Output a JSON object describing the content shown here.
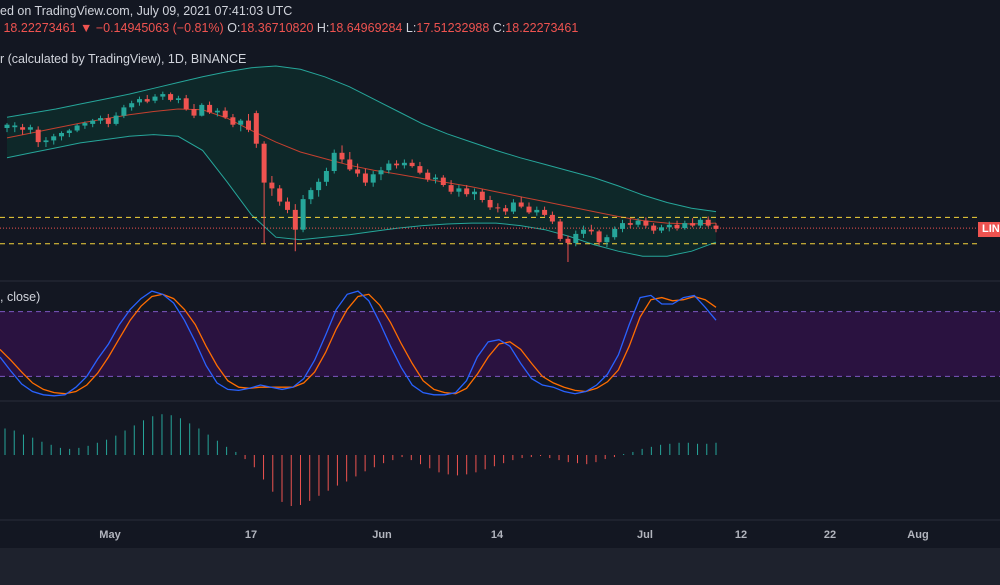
{
  "header": {
    "published": "ed on TradingView.com, July 09, 2021 07:41:03 UTC",
    "last": "18.22273461",
    "change_arrow": "▼",
    "change": "−0.14945063 (−0.81%)",
    "o_label": "O:",
    "o": "18.36710820",
    "h_label": "H:",
    "h": "18.64969284",
    "l_label": "L:",
    "l": "17.51232988",
    "c_label": "C:",
    "c": "18.22273461",
    "symbol_desc": "r (calculated by TradingView), 1D, BINANCE",
    "indicator_desc": ", close)"
  },
  "price_tag": "LINK",
  "colors": {
    "up": "#26a69a",
    "down": "#ef5350",
    "background": "#131722",
    "band": "#26a69a",
    "basis": "#c5402f",
    "band_fill": "#0e2a2a",
    "stoch_k": "#2962ff",
    "stoch_d": "#ff6d00",
    "stoch_fill": "#2a1240",
    "support": "#f5d33a",
    "histogram_up": "#26a69a",
    "histogram_down": "#ef5350"
  },
  "chart_data": [
    {
      "type": "candlestick",
      "name": "price",
      "ohlc_unit": "relative price scale (no axis printed)",
      "candles": [
        [
          37.5,
          38.1,
          37.0,
          37.9
        ],
        [
          37.6,
          38.2,
          37.0,
          37.8
        ],
        [
          37.6,
          38.0,
          36.7,
          37.3
        ],
        [
          37.3,
          37.9,
          36.8,
          37.6
        ],
        [
          37.3,
          37.7,
          35.2,
          35.8
        ],
        [
          35.8,
          36.4,
          35.2,
          36.0
        ],
        [
          36.0,
          36.8,
          35.5,
          36.5
        ],
        [
          36.5,
          37.1,
          36.0,
          36.9
        ],
        [
          36.9,
          37.4,
          36.4,
          37.2
        ],
        [
          37.2,
          38.0,
          37.0,
          37.8
        ],
        [
          37.8,
          38.3,
          37.4,
          38.1
        ],
        [
          38.0,
          38.6,
          37.6,
          38.4
        ],
        [
          38.4,
          39.0,
          38.0,
          38.7
        ],
        [
          38.7,
          39.2,
          37.6,
          38.0
        ],
        [
          38.0,
          39.4,
          37.8,
          39.0
        ],
        [
          39.0,
          40.3,
          38.7,
          40.0
        ],
        [
          40.0,
          40.8,
          39.6,
          40.5
        ],
        [
          40.6,
          41.3,
          40.2,
          41.0
        ],
        [
          41.0,
          41.5,
          40.5,
          40.7
        ],
        [
          40.8,
          41.6,
          40.5,
          41.3
        ],
        [
          41.3,
          41.9,
          40.9,
          41.6
        ],
        [
          41.6,
          41.8,
          40.7,
          40.9
        ],
        [
          40.9,
          41.4,
          40.5,
          41.1
        ],
        [
          41.1,
          41.5,
          39.6,
          39.8
        ],
        [
          39.8,
          40.4,
          38.7,
          39.0
        ],
        [
          39.0,
          40.5,
          38.9,
          40.3
        ],
        [
          40.3,
          40.7,
          39.2,
          39.4
        ],
        [
          39.4,
          39.9,
          38.9,
          39.6
        ],
        [
          39.6,
          40.0,
          38.6,
          38.8
        ],
        [
          38.8,
          39.2,
          37.6,
          37.9
        ],
        [
          37.9,
          38.6,
          37.1,
          38.4
        ],
        [
          38.4,
          39.2,
          37.0,
          37.3
        ],
        [
          39.3,
          39.6,
          35.1,
          35.6
        ],
        [
          35.6,
          35.9,
          23.6,
          30.9
        ],
        [
          30.9,
          31.7,
          29.3,
          30.2
        ],
        [
          30.2,
          30.6,
          28.1,
          28.6
        ],
        [
          28.6,
          29.1,
          27.2,
          27.6
        ],
        [
          27.6,
          28.3,
          22.6,
          25.2
        ],
        [
          25.2,
          29.4,
          24.9,
          28.9
        ],
        [
          28.9,
          30.3,
          28.3,
          30.0
        ],
        [
          30.0,
          31.4,
          29.2,
          31.0
        ],
        [
          31.0,
          32.7,
          30.5,
          32.3
        ],
        [
          32.3,
          34.9,
          32.0,
          34.5
        ],
        [
          34.5,
          35.4,
          33.3,
          33.7
        ],
        [
          33.7,
          34.6,
          32.3,
          32.5
        ],
        [
          32.5,
          33.2,
          31.6,
          32.0
        ],
        [
          32.0,
          32.6,
          30.5,
          30.9
        ],
        [
          30.9,
          32.3,
          30.4,
          31.9
        ],
        [
          31.9,
          32.8,
          31.2,
          32.4
        ],
        [
          32.4,
          33.6,
          32.0,
          33.2
        ],
        [
          33.2,
          33.6,
          32.6,
          33.0
        ],
        [
          33.0,
          33.7,
          32.6,
          33.3
        ],
        [
          33.3,
          33.7,
          32.7,
          32.9
        ],
        [
          32.9,
          33.4,
          31.9,
          32.1
        ],
        [
          32.1,
          32.5,
          31.0,
          31.3
        ],
        [
          31.3,
          31.9,
          30.8,
          31.5
        ],
        [
          31.5,
          31.8,
          30.4,
          30.6
        ],
        [
          30.6,
          31.2,
          29.5,
          29.8
        ],
        [
          29.8,
          30.6,
          29.2,
          30.2
        ],
        [
          30.2,
          30.6,
          29.2,
          29.5
        ],
        [
          29.5,
          30.2,
          28.8,
          29.8
        ],
        [
          29.8,
          30.1,
          28.5,
          28.8
        ],
        [
          28.8,
          29.3,
          27.6,
          27.9
        ],
        [
          27.9,
          28.4,
          27.3,
          27.8
        ],
        [
          27.8,
          28.2,
          27.0,
          27.4
        ],
        [
          27.4,
          28.9,
          27.1,
          28.5
        ],
        [
          28.5,
          29.2,
          27.8,
          28.0
        ],
        [
          28.0,
          28.5,
          27.1,
          27.3
        ],
        [
          27.3,
          28.0,
          26.9,
          27.6
        ],
        [
          27.6,
          28.0,
          26.8,
          27.0
        ],
        [
          27.0,
          27.4,
          25.9,
          26.2
        ],
        [
          26.2,
          26.5,
          23.8,
          24.1
        ],
        [
          24.1,
          24.5,
          21.3,
          23.6
        ],
        [
          23.6,
          25.1,
          23.2,
          24.7
        ],
        [
          24.7,
          25.7,
          24.2,
          25.2
        ],
        [
          25.2,
          25.8,
          24.6,
          25.0
        ],
        [
          25.0,
          25.2,
          23.3,
          23.7
        ],
        [
          23.7,
          24.6,
          23.1,
          24.3
        ],
        [
          24.3,
          25.6,
          24.0,
          25.3
        ],
        [
          25.3,
          26.4,
          24.9,
          26.0
        ],
        [
          26.0,
          26.5,
          25.4,
          25.8
        ],
        [
          25.8,
          26.6,
          25.5,
          26.3
        ],
        [
          26.3,
          26.7,
          25.4,
          25.7
        ],
        [
          25.7,
          26.0,
          24.7,
          25.1
        ],
        [
          25.1,
          25.8,
          24.8,
          25.5
        ],
        [
          25.5,
          26.2,
          25.0,
          25.8
        ],
        [
          25.8,
          26.3,
          25.1,
          25.4
        ],
        [
          25.4,
          26.3,
          25.2,
          26.0
        ],
        [
          26.0,
          26.6,
          25.5,
          25.7
        ],
        [
          25.7,
          26.7,
          25.4,
          26.4
        ],
        [
          26.4,
          26.8,
          25.5,
          25.7
        ],
        [
          25.7,
          26.0,
          24.9,
          25.3
        ]
      ],
      "bollinger": {
        "upper": [
          38.8,
          39.3,
          39.8,
          40.4,
          41.0,
          41.6,
          42.3,
          43.0,
          43.7,
          44.3,
          44.8,
          45.0,
          44.6,
          43.7,
          42.5,
          41.0,
          39.5,
          38.0,
          36.8,
          35.8,
          34.8,
          33.9,
          33.1,
          32.3,
          31.5,
          30.5,
          29.4,
          28.5,
          27.8,
          27.4
        ],
        "basis": [
          36.3,
          36.9,
          37.5,
          38.1,
          38.6,
          39.1,
          39.5,
          39.8,
          39.7,
          38.7,
          37.2,
          35.8,
          34.6,
          33.8,
          33.0,
          32.4,
          31.9,
          31.4,
          30.9,
          30.4,
          29.8,
          29.2,
          28.6,
          28.0,
          27.4,
          26.8,
          26.3,
          26.0,
          25.9,
          26.0
        ],
        "lower": [
          33.9,
          34.5,
          35.1,
          35.7,
          36.1,
          36.5,
          36.7,
          36.5,
          34.8,
          31.0,
          27.0,
          24.3,
          24.0,
          24.3,
          24.6,
          25.0,
          25.4,
          25.7,
          25.9,
          26.0,
          26.0,
          25.7,
          25.2,
          24.4,
          23.4,
          22.6,
          22.0,
          22.0,
          22.6,
          23.7
        ]
      },
      "support_lines": [
        26.7,
        23.5
      ],
      "current_price_line": 25.4
    },
    {
      "type": "line",
      "name": "stochastic-rsi",
      "ylim": [
        0,
        100
      ],
      "band_levels": [
        80,
        20
      ],
      "k": [
        38,
        25,
        13,
        6,
        3,
        2,
        3,
        10,
        20,
        36,
        50,
        68,
        82,
        92,
        99,
        96,
        88,
        72,
        52,
        30,
        14,
        8,
        7,
        9,
        12,
        10,
        8,
        10,
        18,
        35,
        58,
        82,
        96,
        99,
        90,
        70,
        48,
        28,
        12,
        5,
        3,
        3,
        5,
        16,
        38,
        52,
        54,
        48,
        32,
        18,
        12,
        10,
        6,
        4,
        6,
        12,
        22,
        40,
        68,
        93,
        95,
        87,
        87,
        93,
        95,
        84,
        72
      ],
      "d": [
        45,
        35,
        24,
        14,
        8,
        5,
        4,
        6,
        12,
        23,
        38,
        55,
        72,
        85,
        94,
        96,
        92,
        82,
        68,
        48,
        30,
        16,
        10,
        9,
        10,
        10,
        10,
        10,
        14,
        24,
        42,
        64,
        82,
        94,
        96,
        86,
        70,
        50,
        32,
        16,
        8,
        5,
        4,
        9,
        22,
        38,
        50,
        52,
        45,
        32,
        20,
        14,
        10,
        7,
        6,
        9,
        15,
        26,
        48,
        75,
        91,
        93,
        90,
        91,
        94,
        91,
        84
      ]
    },
    {
      "type": "bar",
      "name": "histogram",
      "values": [
        26,
        24,
        20,
        17,
        13,
        10,
        7,
        6,
        7,
        9,
        12,
        15,
        19,
        24,
        29,
        34,
        38,
        40,
        39,
        36,
        31,
        26,
        20,
        14,
        8,
        3,
        -4,
        -12,
        -24,
        -36,
        -46,
        -50,
        -49,
        -45,
        -40,
        -35,
        -30,
        -26,
        -21,
        -16,
        -12,
        -8,
        -5,
        -2,
        -5,
        -9,
        -13,
        -17,
        -19,
        -20,
        -19,
        -17,
        -14,
        -11,
        -8,
        -5,
        -3,
        -2,
        -1,
        -3,
        -5,
        -7,
        -8,
        -9,
        -7,
        -4,
        -2,
        1,
        3,
        6,
        8,
        10,
        11,
        12,
        12,
        11,
        11,
        12
      ]
    }
  ],
  "x_axis": {
    "ticks": [
      {
        "label": "May",
        "pos": 0.11
      },
      {
        "label": "17",
        "pos": 0.251
      },
      {
        "label": "Jun",
        "pos": 0.382
      },
      {
        "label": "14",
        "pos": 0.497
      },
      {
        "label": "Jul",
        "pos": 0.645
      },
      {
        "label": "12",
        "pos": 0.741
      },
      {
        "label": "22",
        "pos": 0.83
      },
      {
        "label": "Aug",
        "pos": 0.918
      }
    ]
  }
}
